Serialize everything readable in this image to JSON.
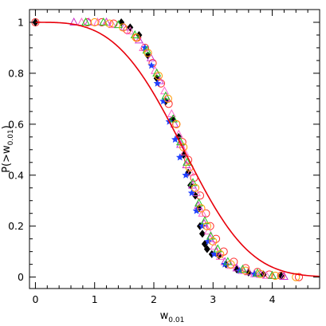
{
  "chart_data": {
    "type": "scatter",
    "title": "",
    "xlabel": {
      "main": "w",
      "sub": "0.01"
    },
    "ylabel": {
      "main": "P(>w",
      "sub": "0.01",
      "close": ")"
    },
    "xlim": [
      -0.1,
      4.8
    ],
    "ylim": [
      -0.045,
      1.05
    ],
    "xticks": [
      0,
      1,
      2,
      3,
      4
    ],
    "yticks": [
      0,
      0.2,
      0.4,
      0.6,
      0.8,
      1
    ],
    "xtick_labels": [
      "0",
      "1",
      "2",
      "3",
      "4"
    ],
    "ytick_labels": [
      "0",
      "0.2",
      "0.4",
      "0.6",
      "0.8",
      "1"
    ],
    "grid": false,
    "model_curve": {
      "color": "#e8000b",
      "form": "exp(-(x/2.8)^3.3)"
    },
    "series": [
      {
        "marker": "circle-open",
        "color": "#ff2a2a",
        "points": [
          [
            0,
            1
          ],
          [
            0.88,
            1
          ],
          [
            1.12,
            1
          ],
          [
            1.32,
            0.995
          ],
          [
            1.55,
            0.97
          ],
          [
            1.72,
            0.94
          ],
          [
            1.85,
            0.9
          ],
          [
            1.98,
            0.84
          ],
          [
            2.12,
            0.76
          ],
          [
            2.25,
            0.68
          ],
          [
            2.38,
            0.6
          ],
          [
            2.48,
            0.53
          ],
          [
            2.58,
            0.46
          ],
          [
            2.68,
            0.39
          ],
          [
            2.78,
            0.32
          ],
          [
            2.88,
            0.25
          ],
          [
            2.95,
            0.2
          ],
          [
            3.05,
            0.15
          ],
          [
            3.18,
            0.1
          ],
          [
            3.35,
            0.06
          ],
          [
            3.55,
            0.035
          ],
          [
            3.75,
            0.02
          ],
          [
            3.95,
            0.01
          ],
          [
            4.15,
            0.005
          ],
          [
            4.45,
            0
          ]
        ]
      },
      {
        "marker": "diamond-filled",
        "color": "#000000",
        "points": [
          [
            0,
            1
          ],
          [
            1.45,
            1
          ],
          [
            1.6,
            0.98
          ],
          [
            1.75,
            0.95
          ],
          [
            1.9,
            0.87
          ],
          [
            2.05,
            0.78
          ],
          [
            2.2,
            0.69
          ],
          [
            2.32,
            0.62
          ],
          [
            2.42,
            0.55
          ],
          [
            2.5,
            0.48
          ],
          [
            2.58,
            0.41
          ],
          [
            2.62,
            0.36
          ],
          [
            2.7,
            0.32
          ],
          [
            2.76,
            0.27
          ],
          [
            2.78,
            0.2
          ],
          [
            2.82,
            0.17
          ],
          [
            2.86,
            0.13
          ],
          [
            2.9,
            0.11
          ],
          [
            2.98,
            0.09
          ],
          [
            3.1,
            0.085
          ],
          [
            3.22,
            0.05
          ],
          [
            3.4,
            0.03
          ],
          [
            3.6,
            0.018
          ],
          [
            3.85,
            0.01
          ],
          [
            4.15,
            0.005
          ]
        ]
      },
      {
        "marker": "triangle-open",
        "color": "#cc33cc",
        "points": [
          [
            0.65,
            1
          ],
          [
            0.9,
            1
          ],
          [
            1.2,
            1
          ],
          [
            1.5,
            0.98
          ],
          [
            1.75,
            0.93
          ],
          [
            1.95,
            0.86
          ],
          [
            2.1,
            0.77
          ],
          [
            2.22,
            0.7
          ],
          [
            2.35,
            0.6
          ],
          [
            2.45,
            0.52
          ],
          [
            2.55,
            0.44
          ],
          [
            2.65,
            0.36
          ],
          [
            2.75,
            0.28
          ],
          [
            2.85,
            0.21
          ],
          [
            2.95,
            0.15
          ],
          [
            3.05,
            0.1
          ],
          [
            3.2,
            0.06
          ],
          [
            3.4,
            0.035
          ],
          [
            3.6,
            0.02
          ],
          [
            3.8,
            0.01
          ],
          [
            4.0,
            0.005
          ],
          [
            4.2,
            0.002
          ]
        ]
      },
      {
        "marker": "triangle-open",
        "color": "#ff66cc",
        "points": [
          [
            0.78,
            1
          ],
          [
            1.05,
            1
          ],
          [
            1.3,
            0.99
          ],
          [
            1.6,
            0.965
          ],
          [
            1.82,
            0.9
          ],
          [
            2.02,
            0.81
          ],
          [
            2.18,
            0.73
          ],
          [
            2.3,
            0.64
          ],
          [
            2.42,
            0.56
          ],
          [
            2.52,
            0.49
          ],
          [
            2.62,
            0.41
          ],
          [
            2.72,
            0.33
          ],
          [
            2.82,
            0.25
          ],
          [
            2.92,
            0.18
          ],
          [
            3.02,
            0.12
          ],
          [
            3.12,
            0.08
          ],
          [
            3.3,
            0.045
          ],
          [
            3.5,
            0.025
          ],
          [
            3.7,
            0.012
          ],
          [
            3.9,
            0.006
          ]
        ]
      },
      {
        "marker": "star",
        "color": "#1f3fff",
        "points": [
          [
            1.85,
            0.9
          ],
          [
            1.96,
            0.83
          ],
          [
            2.06,
            0.76
          ],
          [
            2.16,
            0.69
          ],
          [
            2.26,
            0.61
          ],
          [
            2.36,
            0.54
          ],
          [
            2.44,
            0.47
          ],
          [
            2.54,
            0.4
          ],
          [
            2.64,
            0.33
          ],
          [
            2.72,
            0.26
          ],
          [
            2.82,
            0.2
          ],
          [
            2.92,
            0.14
          ],
          [
            3.02,
            0.09
          ],
          [
            3.2,
            0.05
          ],
          [
            3.45,
            0.025
          ],
          [
            3.7,
            0.012
          ]
        ]
      },
      {
        "marker": "triangle-open",
        "color": "#22cc22",
        "points": [
          [
            0.85,
            1
          ],
          [
            1.15,
            1
          ],
          [
            1.4,
            0.99
          ],
          [
            1.68,
            0.95
          ],
          [
            1.88,
            0.89
          ],
          [
            2.05,
            0.8
          ],
          [
            2.2,
            0.71
          ],
          [
            2.33,
            0.62
          ],
          [
            2.45,
            0.53
          ],
          [
            2.56,
            0.45
          ],
          [
            2.66,
            0.37
          ],
          [
            2.76,
            0.29
          ],
          [
            2.86,
            0.22
          ],
          [
            2.96,
            0.16
          ],
          [
            3.08,
            0.11
          ],
          [
            3.25,
            0.06
          ],
          [
            3.5,
            0.03
          ],
          [
            3.75,
            0.015
          ],
          [
            4.0,
            0.006
          ]
        ]
      },
      {
        "marker": "circle-open",
        "color": "#ff9900",
        "points": [
          [
            1.0,
            1
          ],
          [
            1.25,
            0.995
          ],
          [
            1.48,
            0.98
          ],
          [
            1.7,
            0.94
          ],
          [
            1.9,
            0.88
          ],
          [
            2.08,
            0.79
          ],
          [
            2.24,
            0.7
          ],
          [
            2.38,
            0.6
          ],
          [
            2.5,
            0.51
          ],
          [
            2.6,
            0.43
          ],
          [
            2.7,
            0.35
          ],
          [
            2.8,
            0.27
          ],
          [
            2.9,
            0.2
          ],
          [
            3.0,
            0.14
          ],
          [
            3.12,
            0.09
          ],
          [
            3.3,
            0.05
          ],
          [
            3.55,
            0.025
          ],
          [
            3.8,
            0.012
          ],
          [
            4.05,
            0.005
          ],
          [
            4.4,
            0
          ]
        ]
      }
    ]
  }
}
